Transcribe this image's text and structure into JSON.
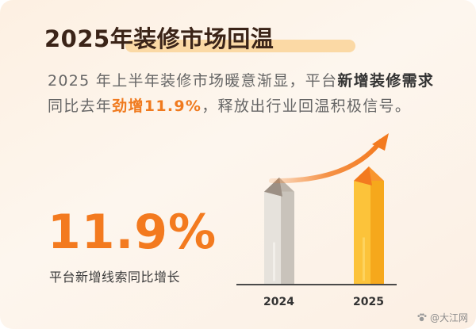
{
  "headline": {
    "title": "2025年装修市场回温"
  },
  "paragraph": {
    "p1": "2025 年上半年装修市场暖意渐显，平台",
    "p2": "新增装修需求",
    "p3": "同比去年",
    "p4": "劲增11.9%",
    "p5": "，释放出行业回温积极信号。"
  },
  "stat": {
    "value": "11.9%",
    "caption": "平台新增线索同比增长"
  },
  "chart_data": {
    "type": "bar",
    "categories": [
      "2024",
      "2025"
    ],
    "values": [
      100,
      111.9
    ],
    "colors": [
      "#d9d4cd",
      "#fbbd2a"
    ],
    "trend_arrow_color": "#f37a1f"
  },
  "watermark": {
    "text": "@大江网"
  }
}
